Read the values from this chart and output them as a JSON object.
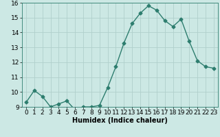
{
  "x": [
    0,
    1,
    2,
    3,
    4,
    5,
    6,
    7,
    8,
    9,
    10,
    11,
    12,
    13,
    14,
    15,
    16,
    17,
    18,
    19,
    20,
    21,
    22,
    23
  ],
  "y": [
    9.3,
    10.1,
    9.7,
    9.0,
    9.2,
    9.4,
    8.8,
    9.0,
    9.0,
    9.1,
    10.3,
    11.7,
    13.3,
    14.6,
    15.3,
    15.8,
    15.5,
    14.8,
    14.4,
    14.9,
    13.4,
    12.1,
    11.7,
    11.6
  ],
  "line_color": "#2d7d6e",
  "marker": "D",
  "marker_size": 2.5,
  "bg_color": "#cce8e4",
  "grid_color": "#b0d0cc",
  "xlabel": "Humidex (Indice chaleur)",
  "ylim": [
    9,
    16
  ],
  "xlim": [
    -0.5,
    23.5
  ],
  "yticks": [
    9,
    10,
    11,
    12,
    13,
    14,
    15,
    16
  ],
  "xticks": [
    0,
    1,
    2,
    3,
    4,
    5,
    6,
    7,
    8,
    9,
    10,
    11,
    12,
    13,
    14,
    15,
    16,
    17,
    18,
    19,
    20,
    21,
    22,
    23
  ],
  "xlabel_fontsize": 7,
  "tick_fontsize": 6.5,
  "linewidth": 1.0
}
